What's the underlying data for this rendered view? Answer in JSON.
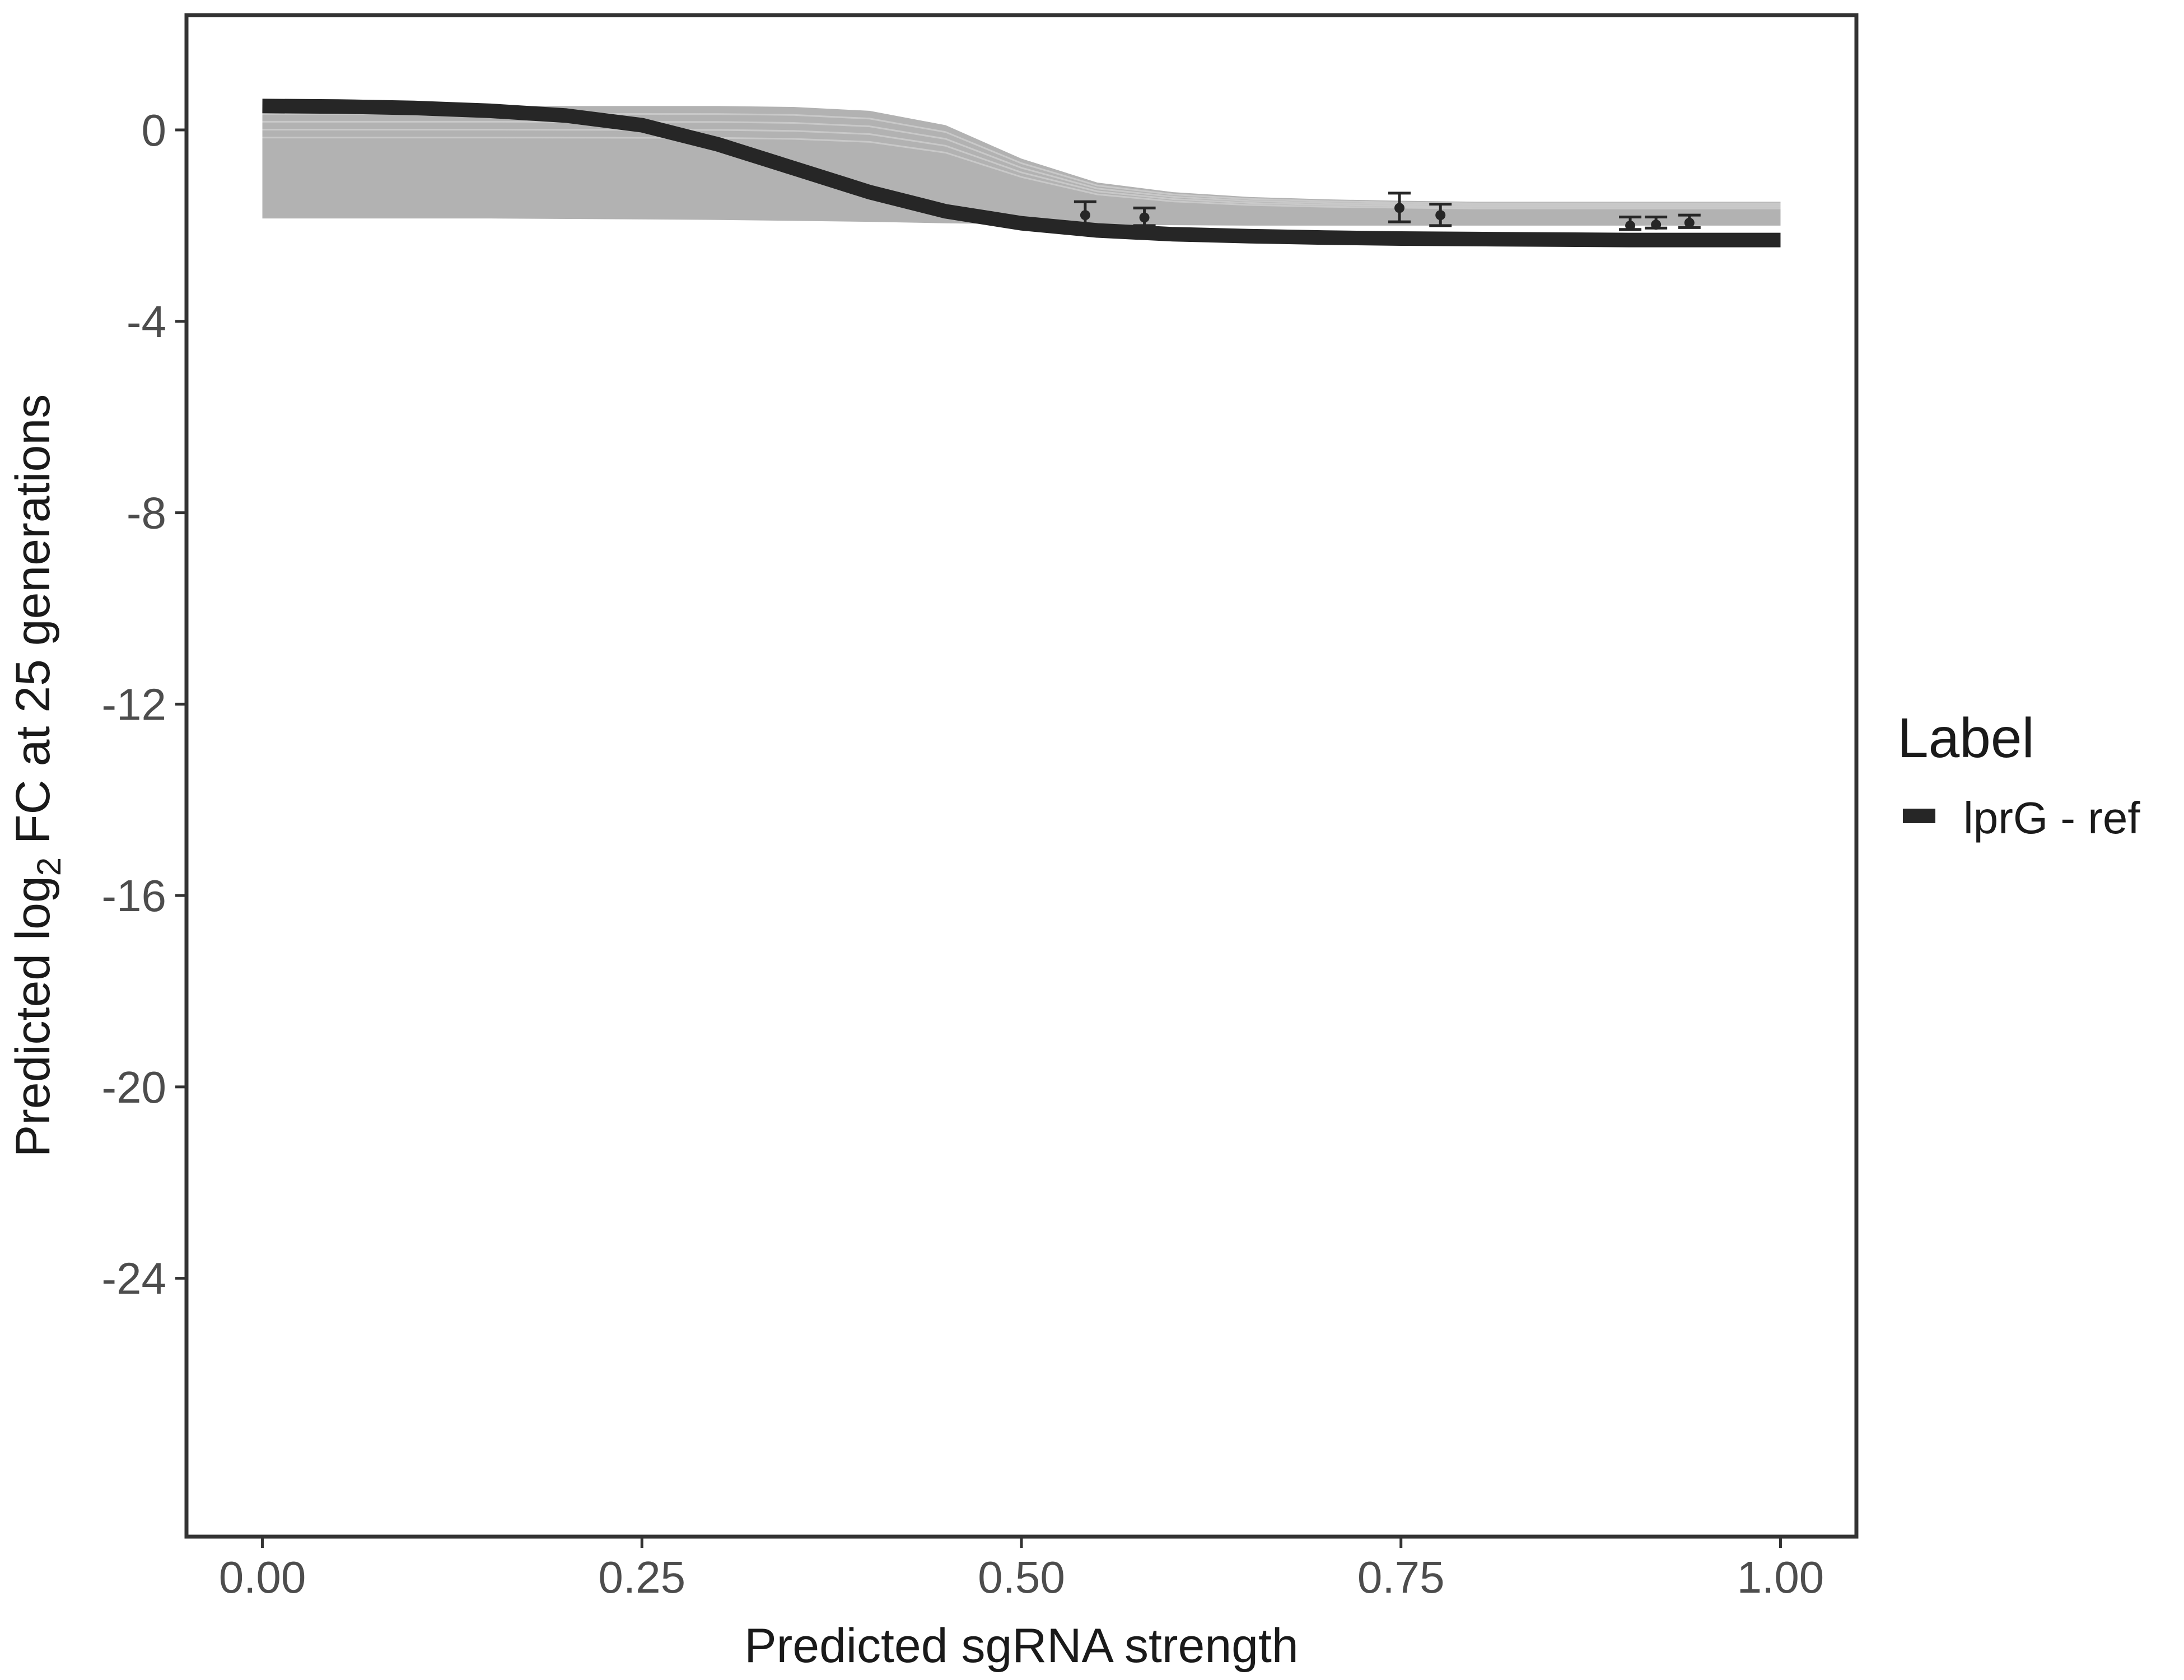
{
  "chart_data": {
    "type": "line",
    "xlabel": "Predicted sgRNA strength",
    "ylabel_prefix": "Predicted  log",
    "ylabel_sub": "2",
    "ylabel_suffix": " FC at 25 generations",
    "x_ticks": [
      "0.00",
      "0.25",
      "0.50",
      "0.75",
      "1.00"
    ],
    "x_tick_values": [
      0,
      0.25,
      0.5,
      0.75,
      1.0
    ],
    "y_ticks": [
      "0",
      "-4",
      "-8",
      "-12",
      "-16",
      "-20",
      "-24"
    ],
    "y_tick_values": [
      0,
      -4,
      -8,
      -12,
      -16,
      -20,
      -24
    ],
    "xlim": [
      -0.05,
      1.05
    ],
    "ylim": [
      -29.4,
      2.4
    ],
    "grid": false,
    "legend": {
      "title": "Label",
      "position": "right",
      "entries": [
        {
          "label": "lprG - ref",
          "color": "#262626"
        }
      ]
    },
    "series": [
      {
        "name": "lprG - ref",
        "color": "#262626",
        "x": [
          0.0,
          0.05,
          0.1,
          0.15,
          0.2,
          0.25,
          0.3,
          0.35,
          0.4,
          0.45,
          0.5,
          0.55,
          0.6,
          0.65,
          0.7,
          0.75,
          0.8,
          0.85,
          0.9,
          0.95,
          1.0
        ],
        "y": [
          0.5,
          0.49,
          0.46,
          0.4,
          0.3,
          0.1,
          -0.3,
          -0.8,
          -1.3,
          -1.7,
          -1.95,
          -2.1,
          -2.18,
          -2.22,
          -2.25,
          -2.27,
          -2.28,
          -2.29,
          -2.3,
          -2.3,
          -2.3
        ]
      }
    ],
    "posterior_band": {
      "color": "#aaaaaa",
      "x": [
        0.0,
        0.05,
        0.1,
        0.15,
        0.2,
        0.25,
        0.3,
        0.35,
        0.4,
        0.45,
        0.5,
        0.55,
        0.6,
        0.65,
        0.7,
        0.75,
        0.8,
        0.85,
        0.9,
        0.95,
        1.0
      ],
      "upper": [
        0.5,
        0.5,
        0.5,
        0.5,
        0.5,
        0.5,
        0.5,
        0.48,
        0.4,
        0.1,
        -0.6,
        -1.1,
        -1.3,
        -1.4,
        -1.45,
        -1.48,
        -1.5,
        -1.5,
        -1.5,
        -1.5,
        -1.5
      ],
      "lower": [
        -1.85,
        -1.85,
        -1.85,
        -1.85,
        -1.86,
        -1.87,
        -1.88,
        -1.9,
        -1.92,
        -1.95,
        -1.97,
        -1.98,
        -1.99,
        -2.0,
        -2.0,
        -2.0,
        -2.0,
        -2.0,
        -2.0,
        -2.0,
        -2.0
      ]
    },
    "observations": [
      {
        "x": 0.542,
        "y": -1.78,
        "ymin": -2.05,
        "ymax": -1.5
      },
      {
        "x": 0.581,
        "y": -1.83,
        "ymin": -2.0,
        "ymax": -1.63
      },
      {
        "x": 0.749,
        "y": -1.63,
        "ymin": -1.92,
        "ymax": -1.32
      },
      {
        "x": 0.776,
        "y": -1.78,
        "ymin": -2.0,
        "ymax": -1.55
      },
      {
        "x": 0.901,
        "y": -2.0,
        "ymin": -2.08,
        "ymax": -1.82
      },
      {
        "x": 0.918,
        "y": -1.98,
        "ymin": -2.05,
        "ymax": -1.82
      },
      {
        "x": 0.94,
        "y": -1.94,
        "ymin": -2.04,
        "ymax": -1.78
      }
    ]
  }
}
